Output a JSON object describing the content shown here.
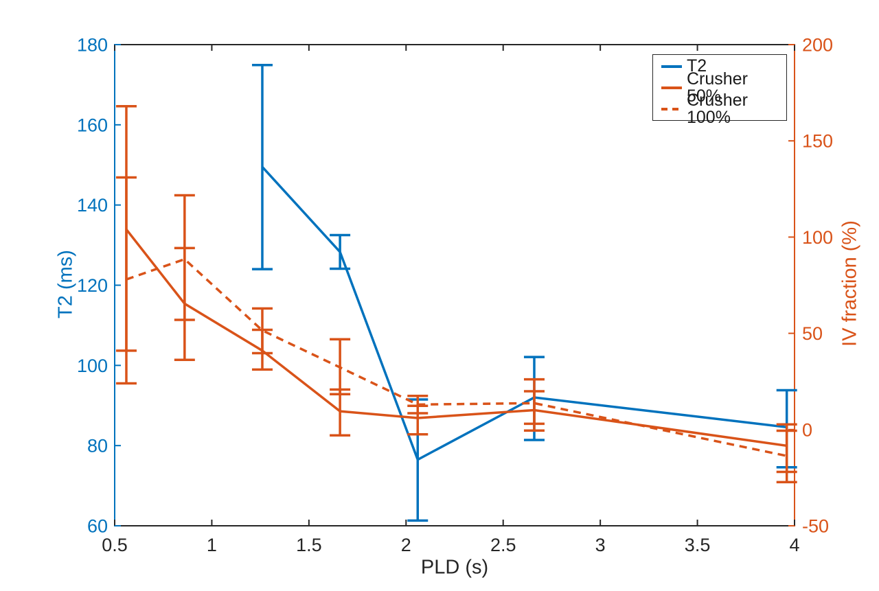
{
  "chart_data": {
    "type": "line",
    "title": "",
    "xlabel": "PLD (s)",
    "xlim": [
      0.5,
      4
    ],
    "x_ticks": [
      0.5,
      1,
      1.5,
      2,
      2.5,
      3,
      3.5,
      4
    ],
    "x_tick_labels": [
      "0.5",
      "1",
      "1.5",
      "2",
      "2.5",
      "3",
      "3.5",
      "4"
    ],
    "left_axis": {
      "label": "T2 (ms)",
      "color": "#0072BD",
      "lim": [
        60,
        180
      ],
      "ticks": [
        60,
        80,
        100,
        120,
        140,
        160,
        180
      ]
    },
    "right_axis": {
      "label": "IV fraction (%)",
      "color": "#D95319",
      "lim": [
        -50,
        200
      ],
      "ticks": [
        -50,
        0,
        50,
        100,
        150,
        200
      ]
    },
    "axis_frame_color": "#262626",
    "grid": false,
    "legend_position": "top-right",
    "series": [
      {
        "name": "T2",
        "axis": "left",
        "color": "#0072BD",
        "style": "solid",
        "x": [
          1.26,
          1.66,
          2.06,
          2.66,
          3.96
        ],
        "y": [
          149.5,
          128.3,
          76.5,
          92.0,
          84.6
        ],
        "err_plus": [
          25.4,
          4.2,
          15.0,
          10.1,
          9.2
        ],
        "err_minus": [
          25.5,
          4.2,
          15.2,
          10.6,
          10.0
        ]
      },
      {
        "name": "Crusher 50%",
        "axis": "right",
        "color": "#D95319",
        "style": "solid",
        "x": [
          0.56,
          0.86,
          1.26,
          1.66,
          2.06,
          2.66,
          3.96
        ],
        "y": [
          104.0,
          65.4,
          41.0,
          9.5,
          6.0,
          10.1,
          -8.4
        ],
        "err_plus": [
          64.0,
          28.9,
          10.8,
          11.3,
          6.3,
          9.8,
          11.1
        ],
        "err_minus": [
          63.0,
          29.2,
          9.8,
          12.5,
          8.5,
          10.6,
          13.6
        ]
      },
      {
        "name": "Crusher 100%",
        "axis": "right",
        "color": "#D95319",
        "style": "dashed",
        "x": [
          0.56,
          0.86,
          1.26,
          1.66,
          2.06,
          2.66,
          3.96
        ],
        "y": [
          78.0,
          88.5,
          51.5,
          32.3,
          13.0,
          13.7,
          -13.7
        ],
        "err_plus": [
          53.0,
          33.2,
          11.4,
          14.6,
          4.5,
          12.4,
          13.1
        ],
        "err_minus": [
          54.0,
          31.5,
          11.8,
          13.9,
          4.5,
          10.7,
          13.6
        ]
      }
    ]
  }
}
